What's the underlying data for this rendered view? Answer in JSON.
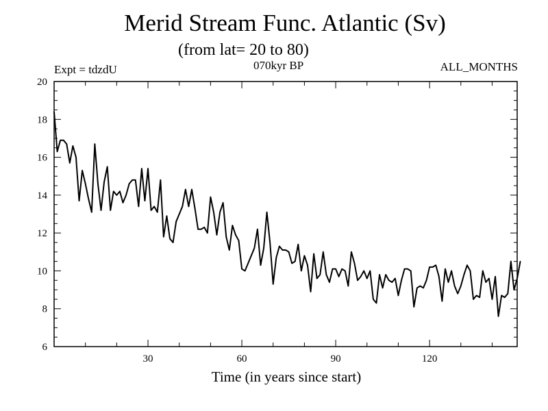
{
  "chart_data": {
    "type": "line",
    "title": "Merid Stream Func. Atlantic (Sv)",
    "subtitle": "(from lat= 20 to 80)",
    "annotations": {
      "left": "Expt = tdzdU",
      "center": "070kyr BP",
      "right": "ALL_MONTHS"
    },
    "xlabel": "Time (in years since start)",
    "ylabel": "",
    "xlim": [
      0,
      148
    ],
    "ylim": [
      6,
      20
    ],
    "xticks": [
      30,
      60,
      90,
      120
    ],
    "yticks": [
      6,
      8,
      10,
      12,
      14,
      16,
      18,
      20
    ],
    "x_start": 0,
    "x_step": 1,
    "series": [
      {
        "name": "Merid Stream Func. Atlantic",
        "color": "#000000",
        "values": [
          18.4,
          16.3,
          16.9,
          16.9,
          16.7,
          15.7,
          16.6,
          16.0,
          13.7,
          15.3,
          14.6,
          13.8,
          13.1,
          16.7,
          14.6,
          13.2,
          14.7,
          15.5,
          13.2,
          14.2,
          14.0,
          14.2,
          13.6,
          14.0,
          14.6,
          14.8,
          14.8,
          13.4,
          15.4,
          13.7,
          15.4,
          13.2,
          13.4,
          13.1,
          14.8,
          11.8,
          12.9,
          11.7,
          11.5,
          12.6,
          13.0,
          13.4,
          14.3,
          13.4,
          14.3,
          13.3,
          12.2,
          12.2,
          12.3,
          12.0,
          13.9,
          13.1,
          11.9,
          13.1,
          13.6,
          11.8,
          11.1,
          12.4,
          11.9,
          11.6,
          10.1,
          10.0,
          10.4,
          10.8,
          11.2,
          12.2,
          10.3,
          11.2,
          13.1,
          11.5,
          9.3,
          10.7,
          11.3,
          11.1,
          11.1,
          11.0,
          10.4,
          10.5,
          11.4,
          10.0,
          10.8,
          10.3,
          8.9,
          10.9,
          9.6,
          9.8,
          11.0,
          9.8,
          9.4,
          10.1,
          10.1,
          9.7,
          10.1,
          10.0,
          9.2,
          11.0,
          10.4,
          9.5,
          9.7,
          10.0,
          9.6,
          10.0,
          8.5,
          8.3,
          9.8,
          9.1,
          9.8,
          9.5,
          9.4,
          9.6,
          8.7,
          9.5,
          10.1,
          10.1,
          10.0,
          8.1,
          9.1,
          9.2,
          9.1,
          9.5,
          10.2,
          10.2,
          10.3,
          9.7,
          8.4,
          10.1,
          9.4,
          10.0,
          9.2,
          8.8,
          9.2,
          9.8,
          10.3,
          10.0,
          8.5,
          8.7,
          8.6,
          10.0,
          9.4,
          9.6,
          8.5,
          9.7,
          7.6,
          8.7,
          8.6,
          8.8,
          10.5,
          9.0,
          9.6,
          10.5
        ]
      }
    ]
  }
}
